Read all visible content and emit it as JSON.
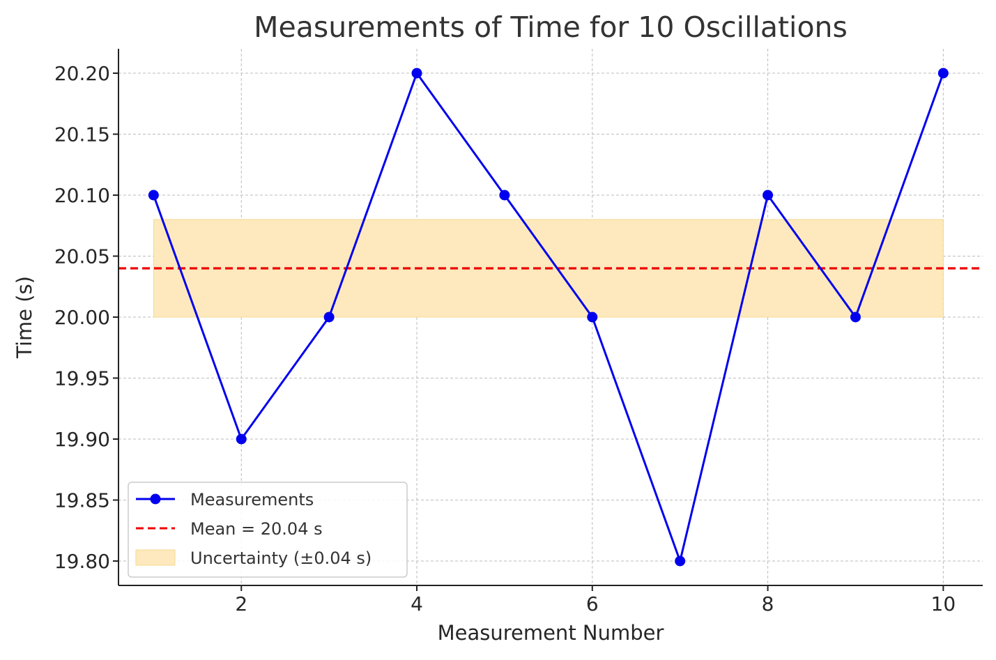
{
  "chart_data": {
    "type": "line",
    "title": "Measurements of Time for 10 Oscillations",
    "xlabel": "Measurement Number",
    "ylabel": "Time (s)",
    "x": [
      1,
      2,
      3,
      4,
      5,
      6,
      7,
      8,
      9,
      10
    ],
    "xlim": [
      0.6,
      10.45
    ],
    "ylim": [
      19.78,
      20.22
    ],
    "xticks": [
      2,
      4,
      6,
      8,
      10
    ],
    "xtick_labels": [
      "2",
      "4",
      "6",
      "8",
      "10"
    ],
    "yticks": [
      19.8,
      19.85,
      19.9,
      19.95,
      20.0,
      20.05,
      20.1,
      20.15,
      20.2
    ],
    "ytick_labels": [
      "19.80",
      "19.85",
      "19.90",
      "19.95",
      "20.00",
      "20.05",
      "20.10",
      "20.15",
      "20.20"
    ],
    "grid": true,
    "legend_position": "lower-left",
    "series": [
      {
        "name": "Measurements",
        "values": [
          20.1,
          19.9,
          20.0,
          20.2,
          20.1,
          20.0,
          19.8,
          20.1,
          20.0,
          20.2
        ],
        "color": "#0000ee",
        "style": "solid",
        "marker": "circle"
      }
    ],
    "mean_line": {
      "label": "Mean = 20.04 s",
      "value": 20.04,
      "color": "#ee0000",
      "style": "dashed"
    },
    "uncertainty_band": {
      "label": "Uncertainty (±0.04 s)",
      "lower": 20.0,
      "upper": 20.08,
      "x_start": 1,
      "x_end": 10,
      "color": "#fde9bd"
    }
  }
}
